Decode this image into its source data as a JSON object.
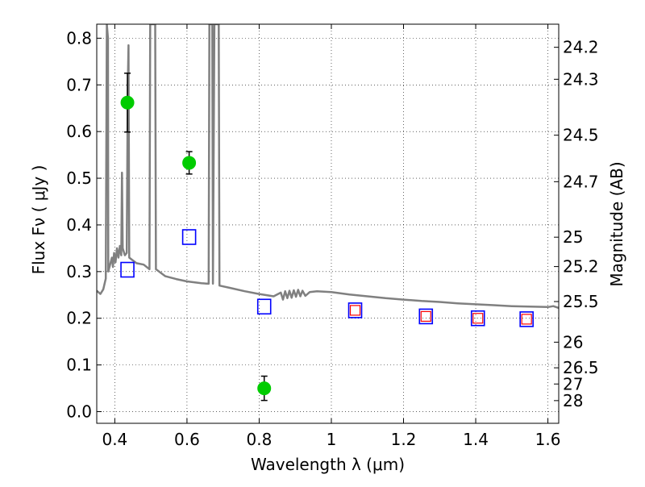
{
  "chart_data": {
    "type": "scatter",
    "xlabel": "Wavelength  λ (μm)",
    "ylabel": "Flux  Fν  ( μJy )",
    "y2label": "Magnitude (AB)",
    "xlim": [
      0.35,
      1.63
    ],
    "ylim": [
      -0.025,
      0.83
    ],
    "grid": true,
    "x_ticks": [
      "0.4",
      "0.6",
      "0.8",
      "1",
      "1.2",
      "1.4",
      "1.6"
    ],
    "y_ticks": [
      "0.0",
      "0.1",
      "0.2",
      "0.3",
      "0.4",
      "0.5",
      "0.6",
      "0.7",
      "0.8"
    ],
    "y2_ticks": [
      {
        "label": "24.2",
        "flux": 0.7805
      },
      {
        "label": "24.3",
        "flux": 0.712
      },
      {
        "label": "24.5",
        "flux": 0.5922
      },
      {
        "label": "24.7",
        "flux": 0.4926
      },
      {
        "label": "25",
        "flux": 0.3737
      },
      {
        "label": "25.2",
        "flux": 0.3108
      },
      {
        "label": "25.5",
        "flux": 0.2358
      },
      {
        "label": "26",
        "flux": 0.1488
      },
      {
        "label": "26.5",
        "flux": 0.0939
      },
      {
        "label": "27",
        "flux": 0.0592
      },
      {
        "label": "28",
        "flux": 0.0236
      }
    ],
    "series": [
      {
        "kind": "points_with_errorbars",
        "color": "#00cc00",
        "points": [
          {
            "x": 0.435,
            "y": 0.662,
            "err": 0.063
          },
          {
            "x": 0.606,
            "y": 0.533,
            "err": 0.024
          },
          {
            "x": 0.814,
            "y": 0.05,
            "err": 0.026
          }
        ]
      },
      {
        "kind": "open_squares",
        "color": "#0000ff",
        "points": [
          {
            "x": 0.435,
            "y": 0.304
          },
          {
            "x": 0.606,
            "y": 0.374
          },
          {
            "x": 0.814,
            "y": 0.225
          },
          {
            "x": 1.066,
            "y": 0.217
          },
          {
            "x": 1.262,
            "y": 0.204
          },
          {
            "x": 1.406,
            "y": 0.2
          },
          {
            "x": 1.541,
            "y": 0.198
          }
        ]
      },
      {
        "kind": "open_squares_small",
        "color": "#ff0000",
        "points": [
          {
            "x": 1.066,
            "y": 0.217
          },
          {
            "x": 1.262,
            "y": 0.204
          },
          {
            "x": 1.406,
            "y": 0.2
          },
          {
            "x": 1.541,
            "y": 0.198
          }
        ]
      },
      {
        "kind": "line",
        "color": "#808080",
        "points": [
          [
            0.35,
            0.259
          ],
          [
            0.36,
            0.252
          ],
          [
            0.368,
            0.262
          ],
          [
            0.375,
            0.285
          ],
          [
            0.378,
            0.83
          ],
          [
            0.381,
            0.8
          ],
          [
            0.382,
            0.3
          ],
          [
            0.392,
            0.33
          ],
          [
            0.395,
            0.31
          ],
          [
            0.398,
            0.34
          ],
          [
            0.402,
            0.32
          ],
          [
            0.406,
            0.35
          ],
          [
            0.41,
            0.33
          ],
          [
            0.414,
            0.355
          ],
          [
            0.418,
            0.335
          ],
          [
            0.42,
            0.512
          ],
          [
            0.422,
            0.35
          ],
          [
            0.428,
            0.335
          ],
          [
            0.433,
            0.34
          ],
          [
            0.436,
            0.7
          ],
          [
            0.438,
            0.785
          ],
          [
            0.44,
            0.33
          ],
          [
            0.46,
            0.318
          ],
          [
            0.48,
            0.315
          ],
          [
            0.496,
            0.305
          ],
          [
            0.498,
            0.83
          ],
          [
            0.512,
            0.83
          ],
          [
            0.514,
            0.305
          ],
          [
            0.54,
            0.29
          ],
          [
            0.57,
            0.284
          ],
          [
            0.6,
            0.279
          ],
          [
            0.64,
            0.275
          ],
          [
            0.66,
            0.274
          ],
          [
            0.662,
            0.83
          ],
          [
            0.67,
            0.83
          ],
          [
            0.672,
            0.274
          ],
          [
            0.676,
            0.83
          ],
          [
            0.688,
            0.83
          ],
          [
            0.69,
            0.27
          ],
          [
            0.72,
            0.265
          ],
          [
            0.76,
            0.258
          ],
          [
            0.8,
            0.252
          ],
          [
            0.84,
            0.247
          ],
          [
            0.86,
            0.255
          ],
          [
            0.866,
            0.24
          ],
          [
            0.872,
            0.258
          ],
          [
            0.878,
            0.243
          ],
          [
            0.884,
            0.259
          ],
          [
            0.89,
            0.244
          ],
          [
            0.896,
            0.26
          ],
          [
            0.902,
            0.246
          ],
          [
            0.908,
            0.261
          ],
          [
            0.914,
            0.247
          ],
          [
            0.92,
            0.259
          ],
          [
            0.928,
            0.248
          ],
          [
            0.94,
            0.256
          ],
          [
            0.96,
            0.258
          ],
          [
            0.98,
            0.257
          ],
          [
            1.0,
            0.256
          ],
          [
            1.05,
            0.251
          ],
          [
            1.1,
            0.247
          ],
          [
            1.15,
            0.243
          ],
          [
            1.2,
            0.24
          ],
          [
            1.25,
            0.237
          ],
          [
            1.3,
            0.235
          ],
          [
            1.35,
            0.232
          ],
          [
            1.4,
            0.23
          ],
          [
            1.45,
            0.228
          ],
          [
            1.5,
            0.226
          ],
          [
            1.55,
            0.225
          ],
          [
            1.6,
            0.224
          ],
          [
            1.615,
            0.226
          ],
          [
            1.63,
            0.222
          ]
        ]
      }
    ]
  }
}
